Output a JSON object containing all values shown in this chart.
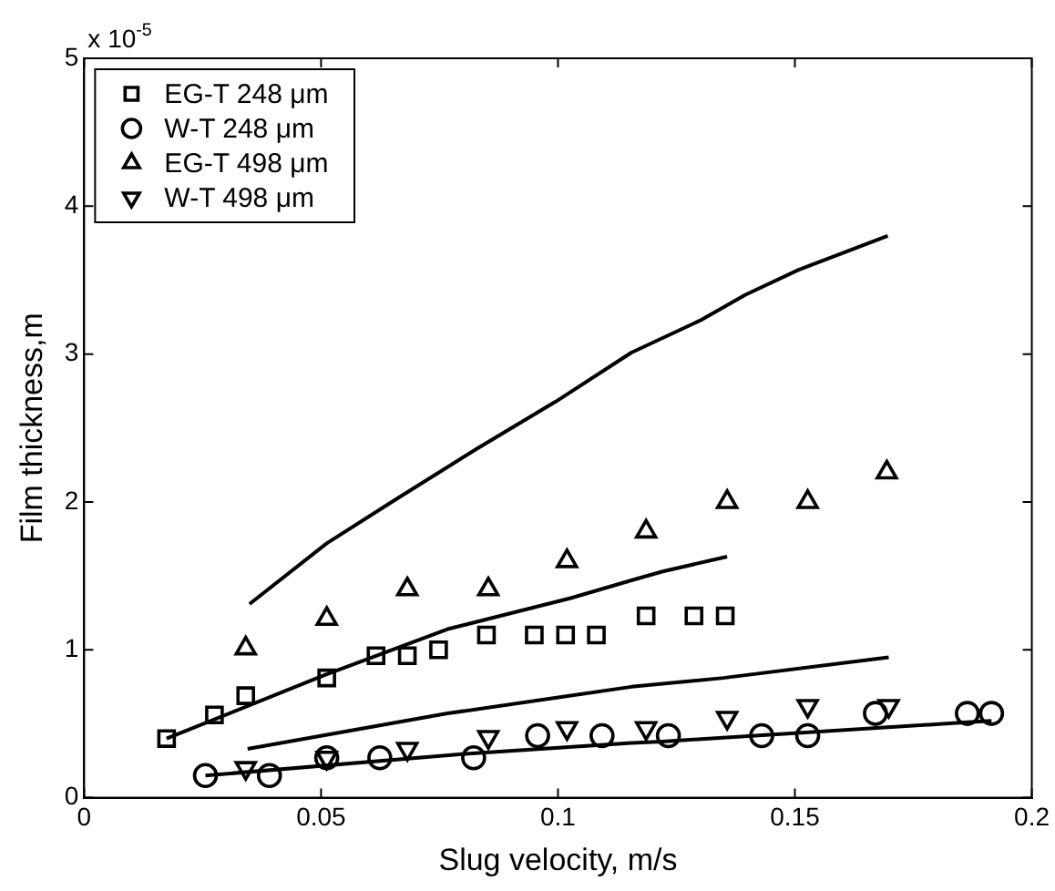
{
  "chart_data": {
    "type": "scatter",
    "xlabel": "Slug velocity, m/s",
    "ylabel": "Film thickness,m",
    "annotations": [
      "x 10$^{-5}$"
    ],
    "xlim": [
      0,
      0.2
    ],
    "xticks": [
      0,
      0.05,
      0.1,
      0.15,
      0.2
    ],
    "ylim": [
      0,
      5
    ],
    "yticks": [
      0,
      1,
      2,
      3,
      4,
      5
    ],
    "grid": false,
    "legend": "top left",
    "line_style": "solid",
    "series": [
      {
        "name": "EG-T 248 μm",
        "color": "#000000",
        "marker": "square",
        "x": [
          0.0174,
          0.0275,
          0.0341,
          0.0512,
          0.0616,
          0.0682,
          0.0748,
          0.0849,
          0.095,
          0.1016,
          0.1081,
          0.1186,
          0.1287,
          0.1353
        ],
        "values": [
          0.4,
          0.56,
          0.69,
          0.81,
          0.96,
          0.96,
          1.0,
          1.1,
          1.1,
          1.1,
          1.1,
          1.23,
          1.23,
          1.23
        ]
      },
      {
        "name": "W-T 248 μm",
        "color": "#000000",
        "marker": "circle",
        "x": [
          0.0256,
          0.0391,
          0.0512,
          0.0624,
          0.0822,
          0.0957,
          0.1093,
          0.1233,
          0.143,
          0.1527,
          0.167,
          0.1864,
          0.1915
        ],
        "values": [
          0.15,
          0.15,
          0.27,
          0.27,
          0.27,
          0.42,
          0.42,
          0.42,
          0.42,
          0.42,
          0.57,
          0.57,
          0.57
        ]
      },
      {
        "name": "EG-T 498 μm",
        "color": "#000000",
        "marker": "triangle",
        "x": [
          0.0341,
          0.0512,
          0.0682,
          0.0853,
          0.1019,
          0.1186,
          0.1357,
          0.1527,
          0.1694
        ],
        "values": [
          1.01,
          1.21,
          1.41,
          1.41,
          1.6,
          1.8,
          2.0,
          2.0,
          2.2
        ]
      },
      {
        "name": "W-T 498 μm",
        "color": "#000000",
        "marker": "triangle-down",
        "x": [
          0.0341,
          0.0512,
          0.0682,
          0.0853,
          0.1019,
          0.1186,
          0.1357,
          0.1527,
          0.1698
        ],
        "values": [
          0.2,
          0.27,
          0.33,
          0.41,
          0.47,
          0.47,
          0.54,
          0.62,
          0.62
        ]
      },
      {
        "type": "line",
        "color": "#000000",
        "marker": "none",
        "x": [
          0.0349,
          0.0512,
          0.0659,
          0.0829,
          0.0996,
          0.1155,
          0.1302,
          0.1395,
          0.1508,
          0.1696
        ],
        "values": [
          1.31,
          1.72,
          2.02,
          2.36,
          2.68,
          3.01,
          3.23,
          3.4,
          3.57,
          3.8
        ]
      },
      {
        "type": "line",
        "color": "#000000",
        "marker": "none",
        "x": [
          0.0174,
          0.0508,
          0.0767,
          0.1027,
          0.1155,
          0.1221,
          0.1357
        ],
        "values": [
          0.4,
          0.83,
          1.14,
          1.35,
          1.47,
          1.53,
          1.63
        ]
      },
      {
        "type": "line",
        "color": "#000000",
        "marker": "none",
        "x": [
          0.0345,
          0.0767,
          0.1155,
          0.1349,
          0.1698
        ],
        "values": [
          0.33,
          0.57,
          0.75,
          0.81,
          0.95
        ]
      },
      {
        "type": "line",
        "color": "#000000",
        "marker": "none",
        "x": [
          0.0256,
          0.0818,
          0.1155,
          0.1221,
          0.1864,
          0.1915
        ],
        "values": [
          0.15,
          0.3,
          0.37,
          0.38,
          0.51,
          0.52
        ]
      }
    ]
  }
}
